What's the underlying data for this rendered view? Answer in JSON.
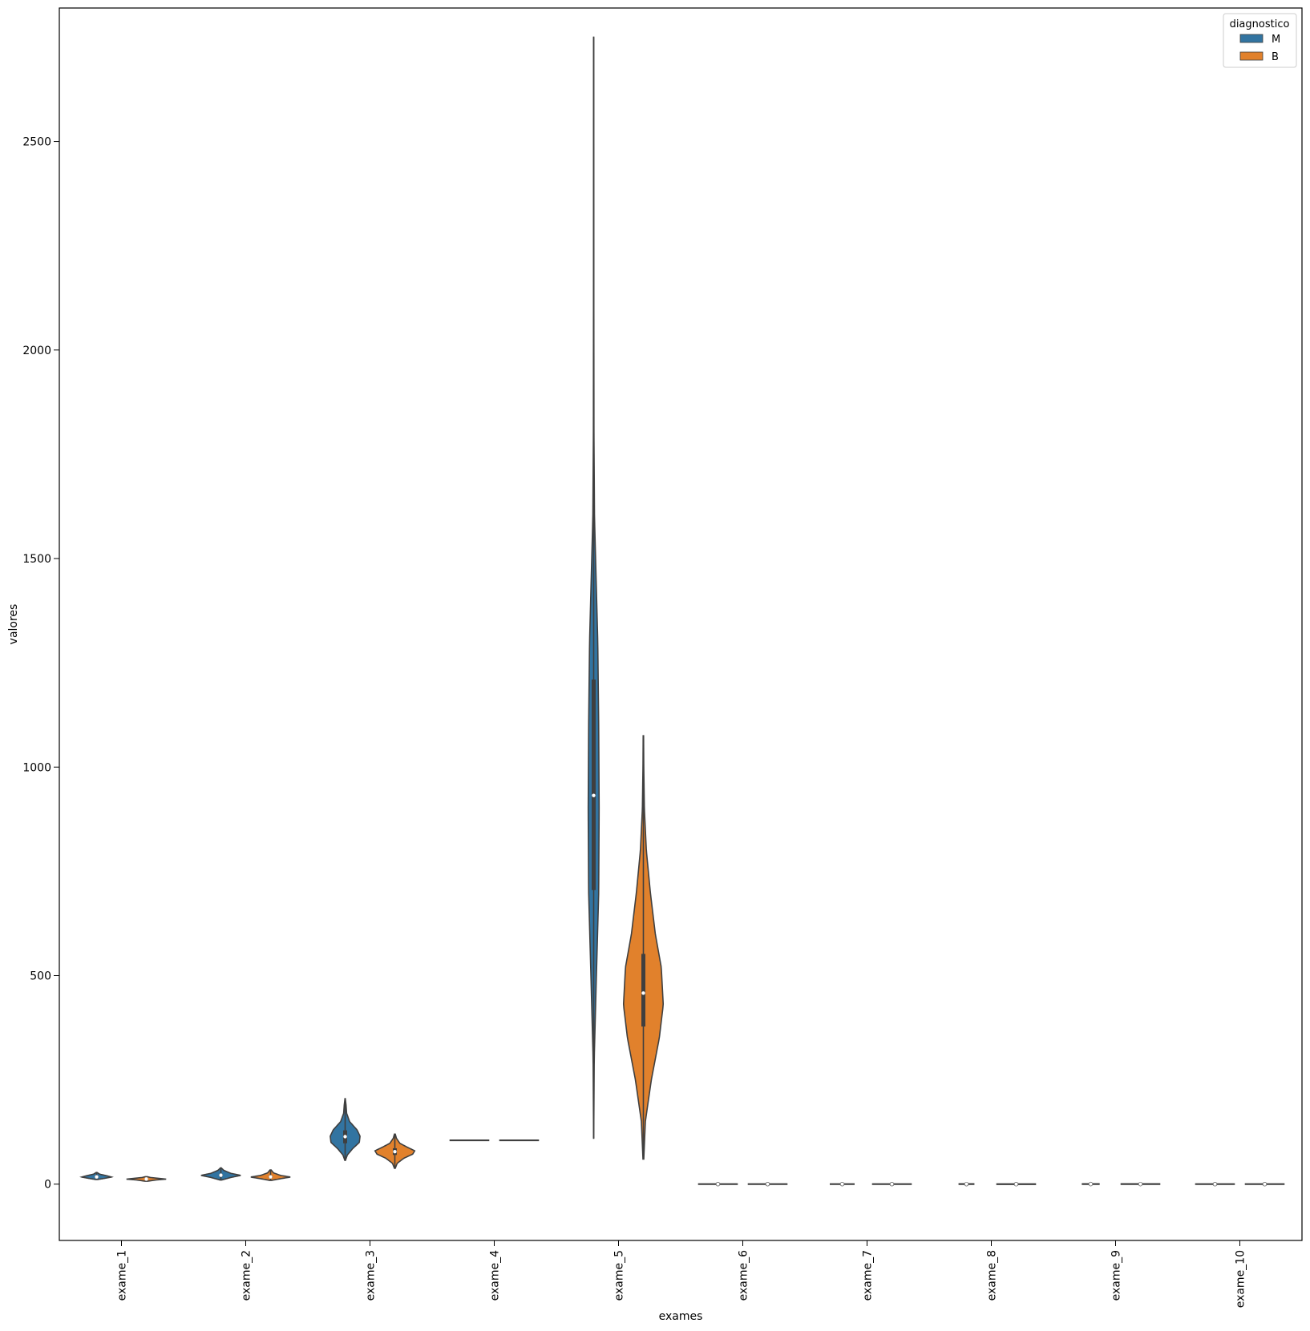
{
  "chart_data": {
    "type": "violin",
    "xlabel": "exames",
    "ylabel": "valores",
    "categories": [
      "exame_1",
      "exame_2",
      "exame_3",
      "exame_4",
      "exame_5",
      "exame_6",
      "exame_7",
      "exame_8",
      "exame_9",
      "exame_10"
    ],
    "yticks": [
      0,
      500,
      1000,
      1500,
      2000,
      2500
    ],
    "ylim": [
      -135,
      2820
    ],
    "legend": {
      "title": "diagnostico",
      "position": "top-right",
      "entries": [
        {
          "name": "M",
          "color": "#3274a1"
        },
        {
          "name": "B",
          "color": "#e1812c"
        }
      ]
    },
    "series": [
      {
        "name": "M",
        "color": "#3274a1",
        "violins": [
          {
            "min": 11,
            "max": 28,
            "q1": 15.1,
            "median": 17.3,
            "q3": 19.6,
            "width": 0.3,
            "prof": [
              [
                11,
                0.05
              ],
              [
                14,
                0.55
              ],
              [
                17,
                1
              ],
              [
                20,
                0.7
              ],
              [
                24,
                0.2
              ],
              [
                28,
                0.03
              ]
            ]
          },
          {
            "min": 10,
            "max": 39,
            "q1": 19.3,
            "median": 21.5,
            "q3": 23.8,
            "width": 0.4,
            "prof": [
              [
                10,
                0.05
              ],
              [
                16,
                0.5
              ],
              [
                21,
                1
              ],
              [
                26,
                0.5
              ],
              [
                33,
                0.15
              ],
              [
                39,
                0.02
              ]
            ]
          },
          {
            "min": 57,
            "max": 205,
            "q1": 98,
            "median": 114,
            "q3": 129,
            "width": 0.3,
            "prof": [
              [
                57,
                0.02
              ],
              [
                70,
                0.15
              ],
              [
                85,
                0.5
              ],
              [
                100,
                0.95
              ],
              [
                115,
                1
              ],
              [
                130,
                0.8
              ],
              [
                150,
                0.3
              ],
              [
                170,
                0.1
              ],
              [
                190,
                0.06
              ],
              [
                205,
                0.01
              ]
            ]
          },
          {
            "min": 105,
            "max": 105,
            "q1": 105,
            "median": 105,
            "q3": 105,
            "width": 0.4,
            "prof": [
              [
                105,
                1
              ]
            ]
          },
          {
            "min": 110,
            "max": 2750,
            "q1": 705,
            "median": 932,
            "q3": 1210,
            "width": 0.11,
            "prof": [
              [
                110,
                0.01
              ],
              [
                300,
                0.1
              ],
              [
                500,
                0.5
              ],
              [
                700,
                0.92
              ],
              [
                900,
                1
              ],
              [
                1100,
                0.92
              ],
              [
                1300,
                0.75
              ],
              [
                1450,
                0.45
              ],
              [
                1600,
                0.15
              ],
              [
                1800,
                0.05
              ],
              [
                2100,
                0.03
              ],
              [
                2400,
                0.02
              ],
              [
                2750,
                0.01
              ]
            ]
          },
          {
            "min": 0,
            "max": 0.2,
            "q1": 0.09,
            "median": 0.1,
            "q3": 0.11,
            "width": 0.4,
            "prof": [
              [
                0,
                1
              ]
            ]
          },
          {
            "min": 0,
            "max": 0.35,
            "q1": 0.11,
            "median": 0.13,
            "q3": 0.2,
            "width": 0.25,
            "prof": [
              [
                0,
                1
              ]
            ]
          },
          {
            "min": 0,
            "max": 0.43,
            "q1": 0.11,
            "median": 0.15,
            "q3": 0.2,
            "width": 0.16,
            "prof": [
              [
                0,
                1
              ]
            ]
          },
          {
            "min": 0,
            "max": 0.3,
            "q1": 0.17,
            "median": 0.19,
            "q3": 0.21,
            "width": 0.18,
            "prof": [
              [
                0,
                1
              ]
            ]
          },
          {
            "min": 0,
            "max": 0.1,
            "q1": 0.06,
            "median": 0.062,
            "q3": 0.066,
            "width": 0.4,
            "prof": [
              [
                0,
                1
              ]
            ]
          }
        ]
      },
      {
        "name": "B",
        "color": "#e1812c",
        "violins": [
          {
            "min": 7,
            "max": 18,
            "q1": 11,
            "median": 12.2,
            "q3": 13.4,
            "width": 0.4,
            "prof": [
              [
                7,
                0.05
              ],
              [
                10,
                0.5
              ],
              [
                12,
                1
              ],
              [
                14,
                0.6
              ],
              [
                16,
                0.2
              ],
              [
                18,
                0.05
              ]
            ]
          },
          {
            "min": 9,
            "max": 34,
            "q1": 15,
            "median": 17.4,
            "q3": 19.8,
            "width": 0.4,
            "prof": [
              [
                9,
                0.05
              ],
              [
                13,
                0.5
              ],
              [
                17,
                1
              ],
              [
                21,
                0.5
              ],
              [
                27,
                0.15
              ],
              [
                34,
                0.03
              ]
            ]
          },
          {
            "min": 38,
            "max": 120,
            "q1": 70,
            "median": 78,
            "q3": 86,
            "width": 0.4,
            "prof": [
              [
                38,
                0.02
              ],
              [
                50,
                0.12
              ],
              [
                62,
                0.45
              ],
              [
                72,
                0.9
              ],
              [
                80,
                1
              ],
              [
                88,
                0.65
              ],
              [
                98,
                0.25
              ],
              [
                110,
                0.08
              ],
              [
                120,
                0.02
              ]
            ]
          },
          {
            "min": 105,
            "max": 105,
            "q1": 105,
            "median": 105,
            "q3": 105,
            "width": 0.4,
            "prof": [
              [
                105,
                1
              ]
            ]
          },
          {
            "min": 60,
            "max": 1075,
            "q1": 378,
            "median": 458,
            "q3": 552,
            "width": 0.4,
            "prof": [
              [
                60,
                0.02
              ],
              [
                150,
                0.1
              ],
              [
                250,
                0.4
              ],
              [
                350,
                0.8
              ],
              [
                430,
                1
              ],
              [
                520,
                0.9
              ],
              [
                600,
                0.6
              ],
              [
                700,
                0.35
              ],
              [
                800,
                0.15
              ],
              [
                900,
                0.05
              ],
              [
                1000,
                0.02
              ],
              [
                1075,
                0.01
              ]
            ]
          },
          {
            "min": 0,
            "max": 0.2,
            "q1": 0.08,
            "median": 0.09,
            "q3": 0.1,
            "width": 0.4,
            "prof": [
              [
                0,
                1
              ]
            ]
          },
          {
            "min": 0,
            "max": 0.3,
            "q1": 0.05,
            "median": 0.075,
            "q3": 0.1,
            "width": 0.4,
            "prof": [
              [
                0,
                1
              ]
            ]
          },
          {
            "min": 0,
            "max": 0.4,
            "q1": 0.02,
            "median": 0.04,
            "q3": 0.06,
            "width": 0.4,
            "prof": [
              [
                0,
                1
              ]
            ]
          },
          {
            "min": 0,
            "max": 0.3,
            "q1": 0.16,
            "median": 0.17,
            "q3": 0.19,
            "width": 0.4,
            "prof": [
              [
                0,
                1
              ]
            ]
          },
          {
            "min": 0,
            "max": 0.1,
            "q1": 0.059,
            "median": 0.061,
            "q3": 0.064,
            "width": 0.4,
            "prof": [
              [
                0,
                1
              ]
            ]
          }
        ]
      }
    ]
  }
}
